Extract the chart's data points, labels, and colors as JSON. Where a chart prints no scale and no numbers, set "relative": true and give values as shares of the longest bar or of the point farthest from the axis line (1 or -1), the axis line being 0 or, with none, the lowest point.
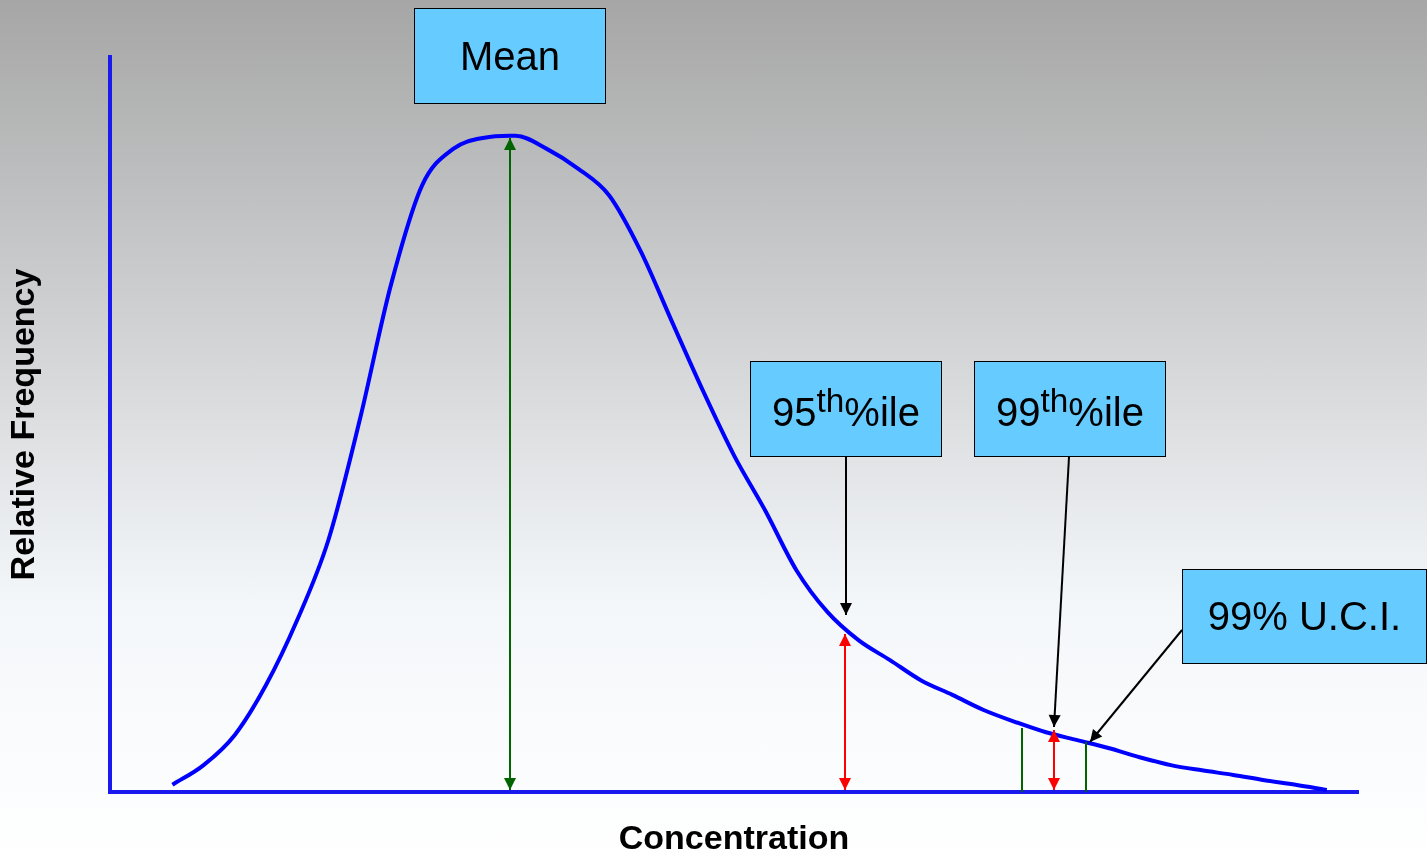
{
  "chart_data": {
    "type": "line",
    "xlabel": "Concentration",
    "ylabel": "Relative Frequency",
    "relative": true,
    "legend": false,
    "grid": false,
    "marker": "none",
    "categories": [
      null,
      null,
      null,
      null,
      null,
      null,
      null,
      null,
      null,
      null,
      null,
      null,
      null,
      null,
      null,
      null,
      null,
      null,
      null,
      null,
      null,
      null,
      null,
      null,
      null,
      null,
      null,
      null,
      null,
      null,
      null,
      null,
      null,
      null,
      null,
      null,
      null,
      null,
      null,
      null,
      null
    ],
    "series": [
      {
        "color": "#0000ff",
        "values": [
          null,
          null,
          0.011,
          0.041,
          0.087,
          0.163,
          0.262,
          0.384,
          0.566,
          0.772,
          0.924,
          0.98,
          0.997,
          1,
          0.98,
          0.95,
          0.909,
          0.825,
          0.718,
          0.612,
          0.513,
          0.429,
          0.338,
          0.274,
          0.231,
          0.201,
          0.17,
          0.148,
          0.125,
          0.107,
          0.091,
          0.079,
          0.067,
          0.053,
          0.041,
          0.033,
          0.026,
          0.018,
          0.011,
          0.003,
          null
        ]
      }
    ],
    "annotations": [
      "Mean",
      "95$^{th}$%ile",
      "99$^{th}$%ile",
      "99% U.C.I."
    ]
  }
}
